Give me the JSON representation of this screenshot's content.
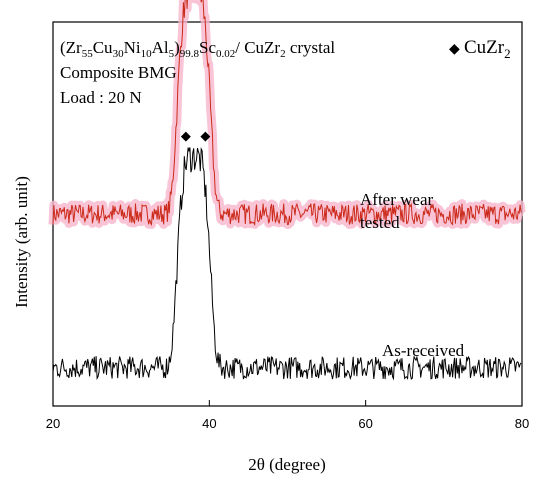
{
  "chart_data": {
    "type": "line",
    "annotation": {
      "formula_prefix": "(Zr",
      "zr_sub": "55",
      "cu": "Cu",
      "cu_sub": "30",
      "ni": "Ni",
      "ni_sub": "10",
      "al": "Al",
      "al_sub": "5",
      "close": ")",
      "alloy_sub": "99.8",
      "sc": "Sc",
      "sc_sub": "0.02",
      "suffix": "/ CuZr",
      "suffix_sub": "2",
      "suffix_end": " crystal",
      "line2": "Composite BMG",
      "line3": "Load : 20 N"
    },
    "legend": {
      "symbol": "◆",
      "label": "CuZr",
      "label_sub": "2",
      "position": "top-right"
    },
    "peak_markers": [
      {
        "x": 37.0,
        "symbol": "◆"
      },
      {
        "x": 39.5,
        "symbol": "◆"
      }
    ],
    "xlabel": "2θ (degree)",
    "ylabel": "Intensity (arb. unit)",
    "xlim": [
      20,
      80
    ],
    "xticks": [
      20,
      40,
      60,
      80
    ],
    "xtick_labels": [
      "20",
      "40",
      "60",
      "80"
    ],
    "series": [
      {
        "name": "After wear tested",
        "label_line1": "After wear",
        "label_line2": "tested",
        "color": "#cc2a1a",
        "halo_color": "#f6b5cc",
        "baseline": 0.5,
        "peak_height": 0.58,
        "noise": 0.055
      },
      {
        "name": "As-received",
        "label_line1": "As-received",
        "color": "#000000",
        "baseline": 0.1,
        "peak_height": 0.55,
        "noise": 0.06
      }
    ],
    "peak_center": 38.0,
    "grid": false
  }
}
